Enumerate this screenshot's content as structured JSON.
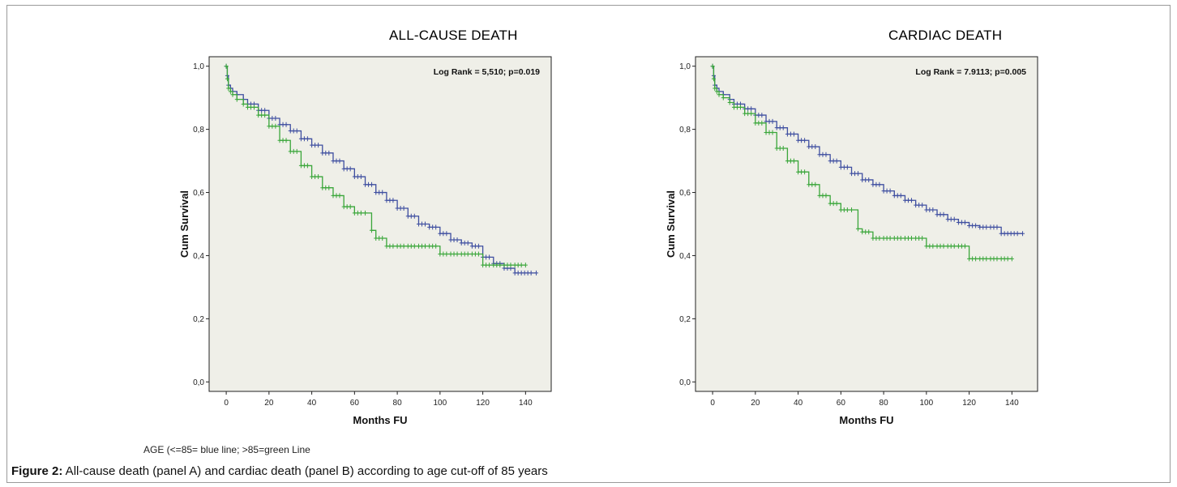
{
  "caption": {
    "label": "Figure 2:",
    "text": " All-cause death (panel A) and cardiac death (panel B) according to age cut-off of 85 years"
  },
  "legend_note": "AGE (<=85= blue line; >85=green Line",
  "colors": {
    "blue": "#3f4fa0",
    "green": "#3aa63a",
    "plot_bg": "#efefe8"
  },
  "chart_data": [
    {
      "type": "line",
      "title": "ALL-CAUSE DEATH",
      "annotation": "Log Rank = 5,510; p=0.019",
      "xlabel": "Months FU",
      "ylabel": "Cum Survival",
      "xlim": [
        -8,
        152
      ],
      "ylim": [
        -0.03,
        1.03
      ],
      "xticks": [
        0,
        20,
        40,
        60,
        80,
        100,
        120,
        140
      ],
      "yticks": [
        0.0,
        0.2,
        0.4,
        0.6,
        0.8,
        1.0
      ],
      "ytick_labels": [
        "0,0",
        "0,2",
        "0,4",
        "0,6",
        "0,8",
        "1,0"
      ],
      "series": [
        {
          "color": "blue",
          "x": [
            0,
            0.5,
            1,
            2,
            3,
            5,
            8,
            10,
            15,
            20,
            25,
            30,
            35,
            40,
            45,
            50,
            55,
            60,
            65,
            70,
            75,
            80,
            85,
            90,
            95,
            100,
            105,
            110,
            115,
            120,
            125,
            130,
            135,
            145
          ],
          "y": [
            1.0,
            0.97,
            0.94,
            0.93,
            0.92,
            0.91,
            0.895,
            0.88,
            0.86,
            0.835,
            0.815,
            0.795,
            0.77,
            0.75,
            0.725,
            0.7,
            0.675,
            0.65,
            0.625,
            0.6,
            0.575,
            0.55,
            0.525,
            0.5,
            0.49,
            0.47,
            0.45,
            0.44,
            0.43,
            0.395,
            0.375,
            0.36,
            0.345,
            0.345
          ]
        },
        {
          "color": "green",
          "x": [
            0,
            0.5,
            1,
            2,
            3,
            5,
            8,
            10,
            15,
            20,
            25,
            30,
            35,
            40,
            45,
            50,
            55,
            60,
            65,
            68,
            70,
            75,
            80,
            85,
            90,
            95,
            100,
            105,
            110,
            115,
            120,
            125,
            130,
            135,
            140
          ],
          "y": [
            1.0,
            0.96,
            0.93,
            0.92,
            0.91,
            0.895,
            0.88,
            0.87,
            0.845,
            0.81,
            0.765,
            0.73,
            0.685,
            0.65,
            0.615,
            0.59,
            0.555,
            0.535,
            0.535,
            0.48,
            0.455,
            0.43,
            0.43,
            0.43,
            0.43,
            0.43,
            0.405,
            0.405,
            0.405,
            0.405,
            0.37,
            0.37,
            0.37,
            0.37,
            0.37
          ]
        }
      ]
    },
    {
      "type": "line",
      "title": "CARDIAC DEATH",
      "annotation": "Log Rank = 7.9113; p=0.005",
      "xlabel": "Months FU",
      "ylabel": "Cum Survival",
      "xlim": [
        -8,
        152
      ],
      "ylim": [
        -0.03,
        1.03
      ],
      "xticks": [
        0,
        20,
        40,
        60,
        80,
        100,
        120,
        140
      ],
      "yticks": [
        0.0,
        0.2,
        0.4,
        0.6,
        0.8,
        1.0
      ],
      "ytick_labels": [
        "0,0",
        "0,2",
        "0,4",
        "0,6",
        "0,8",
        "1,0"
      ],
      "series": [
        {
          "color": "blue",
          "x": [
            0,
            0.5,
            1,
            2,
            3,
            5,
            8,
            10,
            15,
            20,
            25,
            30,
            35,
            40,
            45,
            50,
            55,
            60,
            65,
            70,
            75,
            80,
            85,
            90,
            95,
            100,
            105,
            110,
            115,
            120,
            125,
            130,
            135,
            145
          ],
          "y": [
            1.0,
            0.97,
            0.94,
            0.93,
            0.92,
            0.91,
            0.895,
            0.88,
            0.865,
            0.845,
            0.825,
            0.805,
            0.785,
            0.765,
            0.745,
            0.72,
            0.7,
            0.68,
            0.66,
            0.64,
            0.625,
            0.605,
            0.59,
            0.575,
            0.56,
            0.545,
            0.53,
            0.515,
            0.505,
            0.495,
            0.49,
            0.49,
            0.47,
            0.47
          ]
        },
        {
          "color": "green",
          "x": [
            0,
            0.5,
            1,
            2,
            3,
            5,
            8,
            10,
            15,
            20,
            25,
            30,
            35,
            40,
            45,
            50,
            55,
            60,
            65,
            68,
            70,
            75,
            80,
            85,
            90,
            95,
            100,
            105,
            110,
            115,
            120,
            125,
            130,
            135,
            140
          ],
          "y": [
            1.0,
            0.96,
            0.93,
            0.92,
            0.91,
            0.9,
            0.885,
            0.87,
            0.85,
            0.82,
            0.79,
            0.74,
            0.7,
            0.665,
            0.625,
            0.59,
            0.565,
            0.545,
            0.545,
            0.485,
            0.475,
            0.455,
            0.455,
            0.455,
            0.455,
            0.455,
            0.43,
            0.43,
            0.43,
            0.43,
            0.39,
            0.39,
            0.39,
            0.39,
            0.39
          ]
        }
      ]
    }
  ]
}
